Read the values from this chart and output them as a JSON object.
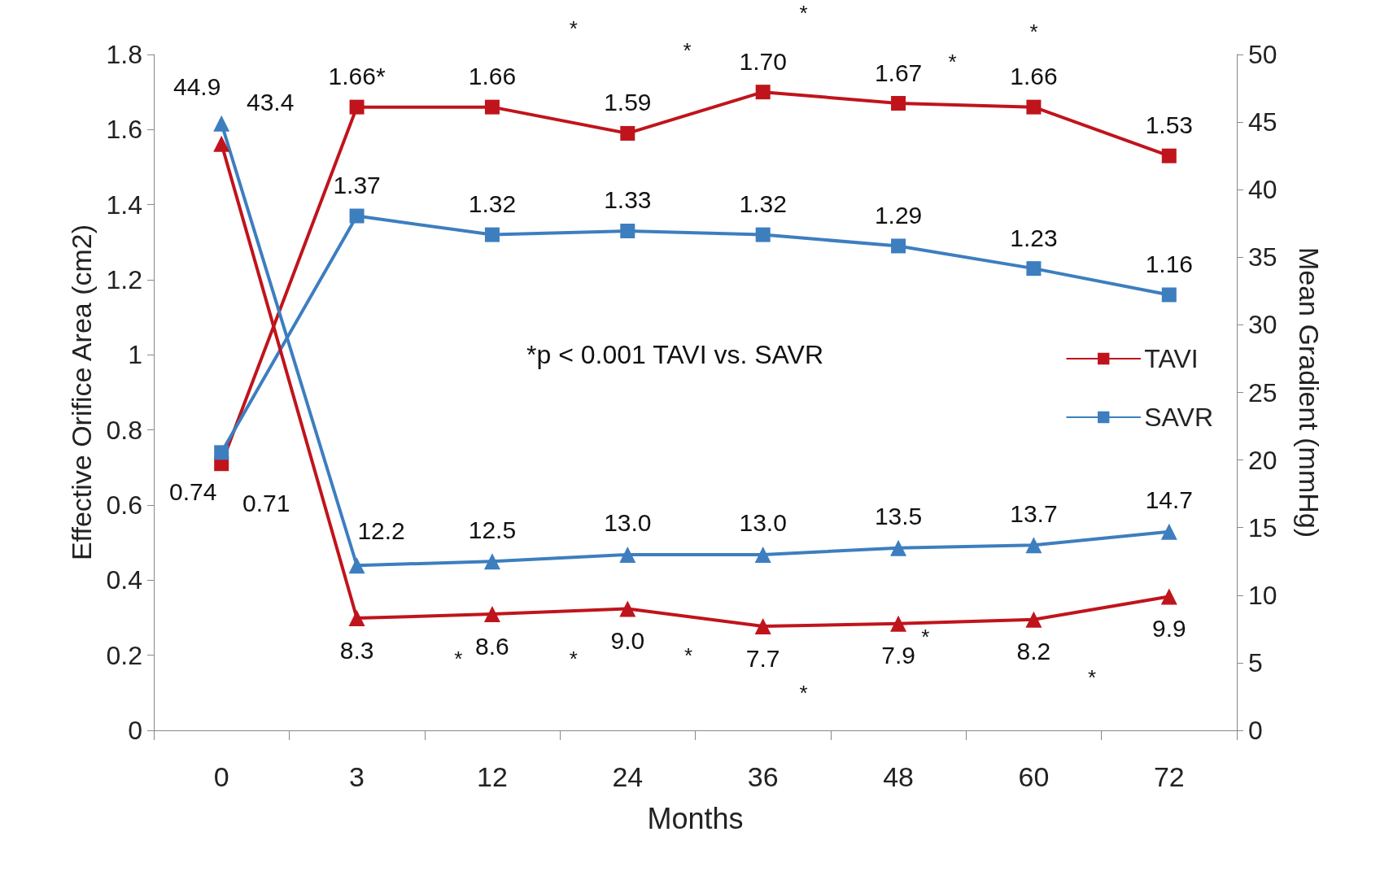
{
  "chart_data": {
    "type": "line",
    "xlabel": "Months",
    "ylabel": "Effective Orifice Area (cm2)",
    "y2label": "Mean Gradient (mmHg)",
    "categories": [
      "0",
      "3",
      "12",
      "24",
      "36",
      "48",
      "60",
      "72"
    ],
    "series": [
      {
        "name": "TAVI",
        "color": "#c0141c",
        "marker": "square",
        "values": [
          0.71,
          1.66,
          1.66,
          1.59,
          1.7,
          1.67,
          1.66,
          1.53
        ],
        "value_labels": [
          "0.71",
          "1.66*",
          "1.66",
          "1.59",
          "1.70",
          "1.67",
          "1.66",
          "1.53"
        ]
      },
      {
        "name": "SAVR",
        "color": "#3d7ebf",
        "marker": "square",
        "values": [
          0.74,
          1.37,
          1.32,
          1.33,
          1.32,
          1.29,
          1.23,
          1.16
        ],
        "value_labels": [
          "0.74",
          "1.37",
          "1.32",
          "1.33",
          "1.32",
          "1.29",
          "1.23",
          "1.16"
        ]
      },
      {
        "color": "#c0141c",
        "marker": "triangle",
        "axis": "y2",
        "values": [
          43.4,
          8.3,
          8.6,
          9.0,
          7.7,
          7.9,
          8.2,
          9.9
        ],
        "value_labels": [
          "43.4",
          "8.3",
          "8.6",
          "9.0",
          "7.7",
          "7.9",
          "8.2",
          "9.9"
        ]
      },
      {
        "color": "#3d7ebf",
        "marker": "triangle",
        "axis": "y2",
        "values": [
          44.9,
          12.2,
          12.5,
          13.0,
          13.0,
          13.5,
          13.7,
          14.7
        ],
        "value_labels": [
          "44.9",
          "12.2",
          "12.5",
          "13.0",
          "13.0",
          "13.5",
          "13.7",
          "14.7"
        ]
      }
    ],
    "ylim": [
      0,
      1.8
    ],
    "yticks": [
      0,
      0.2,
      0.4,
      0.6,
      0.8,
      1,
      1.2,
      1.4,
      1.6,
      1.8
    ],
    "y2lim": [
      0,
      50
    ],
    "y2ticks": [
      0,
      5,
      10,
      15,
      20,
      25,
      30,
      35,
      40,
      45,
      50
    ],
    "annotations": [
      "*p < 0.001 TAVI vs. SAVR",
      "*",
      "*",
      "*",
      "*",
      "*",
      "*",
      "*",
      "*",
      "*",
      "*",
      "*"
    ],
    "line_style": "solid",
    "grid": false,
    "legend": "right"
  }
}
